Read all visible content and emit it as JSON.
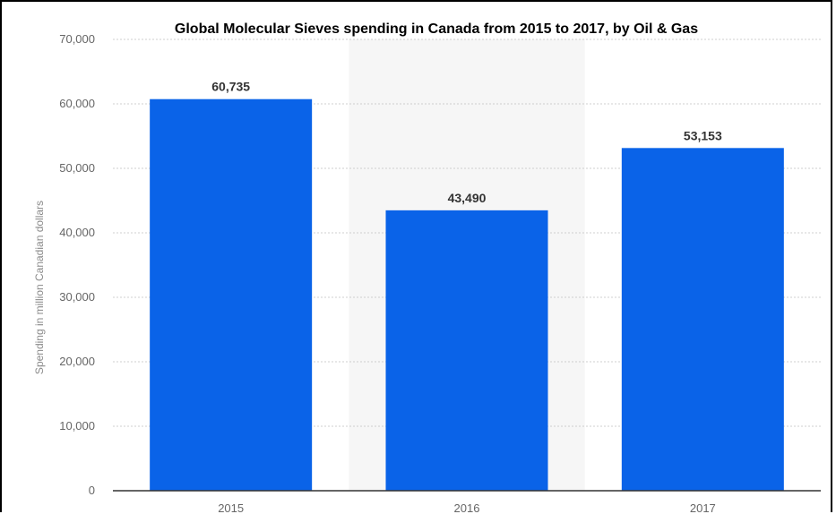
{
  "chart_data": {
    "type": "bar",
    "title": "Global Molecular Sieves spending in Canada from 2015 to 2017, by Oil & Gas",
    "xlabel": "",
    "ylabel": "Spending in million Canadian dollars",
    "categories": [
      "2015",
      "2016",
      "2017"
    ],
    "values": [
      60735,
      43490,
      53153
    ],
    "value_labels": [
      "60,735",
      "43,490",
      "53,153"
    ],
    "ylim": [
      0,
      70000
    ],
    "yticks": [
      0,
      10000,
      20000,
      30000,
      40000,
      50000,
      60000,
      70000
    ],
    "ytick_labels": [
      "0",
      "10,000",
      "20,000",
      "30,000",
      "40,000",
      "50,000",
      "60,000",
      "70,000"
    ],
    "grid": true,
    "bar_color": "#0a63e8",
    "highlight_band_color": "#f6f6f6"
  }
}
